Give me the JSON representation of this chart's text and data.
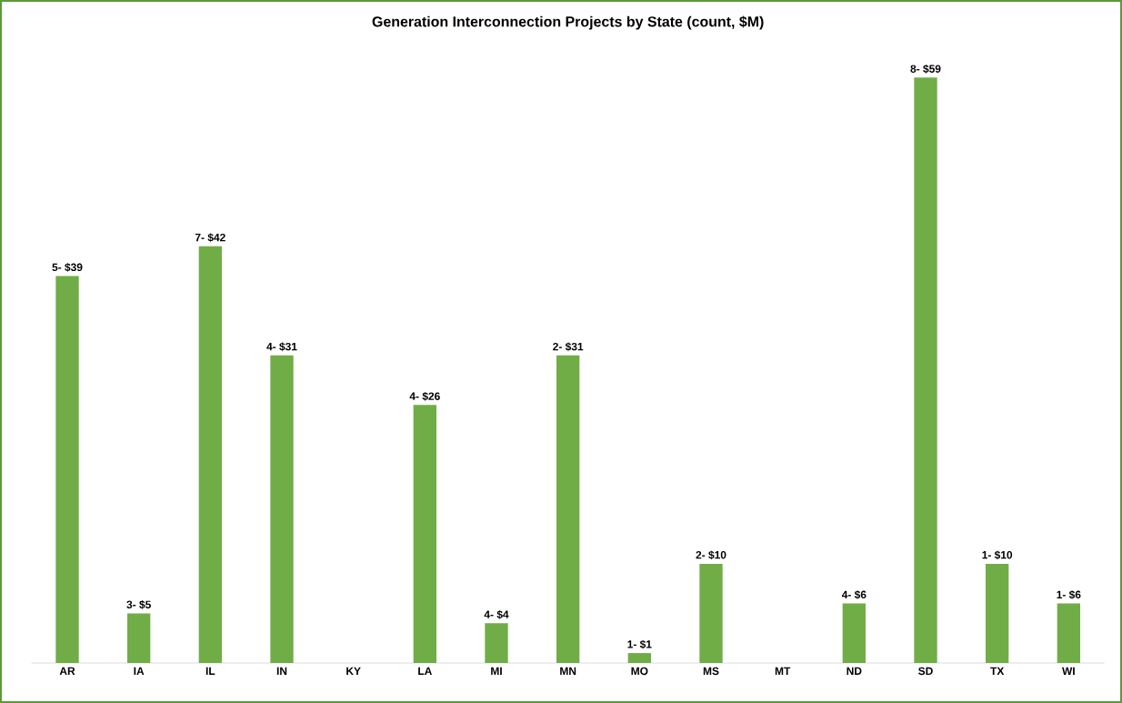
{
  "chart_data": {
    "type": "bar",
    "title": "Generation Interconnection Projects by State (count, $M)",
    "categories": [
      "AR",
      "IA",
      "IL",
      "IN",
      "KY",
      "LA",
      "MI",
      "MN",
      "MO",
      "MS",
      "MT",
      "ND",
      "SD",
      "TX",
      "WI"
    ],
    "values": [
      39,
      5,
      42,
      31,
      null,
      26,
      4,
      31,
      1,
      10,
      null,
      6,
      59,
      10,
      6
    ],
    "value_labels": [
      "5- $39",
      "3- $5",
      "7- $42",
      "4- $31",
      null,
      "4- $26",
      "4- $4",
      "2- $31",
      "1- $1",
      "2- $10",
      null,
      "4- $6",
      "8- $59",
      "1- $10",
      "1- $6"
    ],
    "color": "#70ad47"
  }
}
